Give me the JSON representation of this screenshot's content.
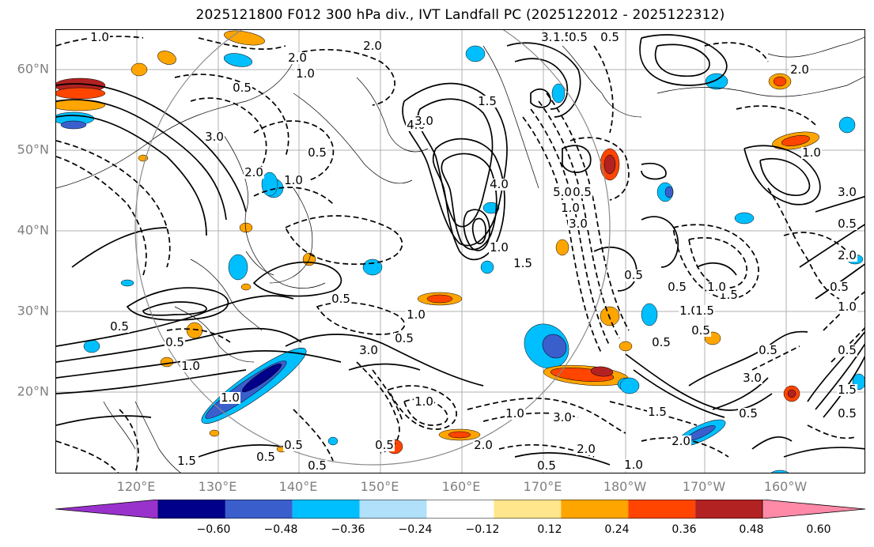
{
  "title": "2025121800 F012 300 hPa div., IVT Landfall PC (2025122012 - 2025122312)",
  "map": {
    "lat_labels": [
      "60°N",
      "50°N",
      "40°N",
      "30°N",
      "20°N"
    ],
    "lon_labels": [
      "120°E",
      "130°E",
      "140°E",
      "150°E",
      "160°E",
      "170°E",
      "180°W",
      "170°W",
      "160°W"
    ],
    "grid": true,
    "coastline_color": "#000000",
    "grid_color": "#b0b0b0",
    "contour_labels": [
      "1.0",
      "2.0",
      "3.0",
      "1.5",
      "0.5",
      "2.0",
      "1.0",
      "0.5",
      "4.0",
      "3.0",
      "1.5",
      "0.5",
      "1.0",
      "2.0",
      "3.0",
      "4.0",
      "5.0",
      "1.0",
      "3.0",
      "0.5",
      "0.5",
      "1.0",
      "1.5",
      "0.5",
      "0.5",
      "1.5",
      "1.0",
      "0.5",
      "0.5",
      "1.0",
      "1.5",
      "0.5",
      "2.0",
      "1.0",
      "3.0",
      "0.5",
      "1.0",
      "0.5",
      "0.5",
      "1.5",
      "0.5",
      "2.0",
      "1.0",
      "0.5",
      "3.0",
      "0.5",
      "0.5",
      "0.5",
      "1.0",
      "1.5",
      "1.0",
      "0.5",
      "0.5",
      "0.5",
      "0.5",
      "1.0",
      "0.5",
      "1.0",
      "2.0",
      "3.0",
      "2.0",
      "1.0",
      "1.5",
      "2.0",
      "3.0",
      "0.5"
    ]
  },
  "colorbar": {
    "ticks": [
      "−0.60",
      "−0.48",
      "−0.36",
      "−0.24",
      "−0.12",
      "0.12",
      "0.24",
      "0.36",
      "0.48",
      "0.60"
    ],
    "colors": [
      "#9932cc",
      "#00008b",
      "#3a5fcd",
      "#00bfff",
      "#b0e0fa",
      "#ffffff",
      "#ffe68c",
      "#ffa500",
      "#ff4500",
      "#b22222",
      "#ff8aa8"
    ],
    "extend": "both"
  }
}
